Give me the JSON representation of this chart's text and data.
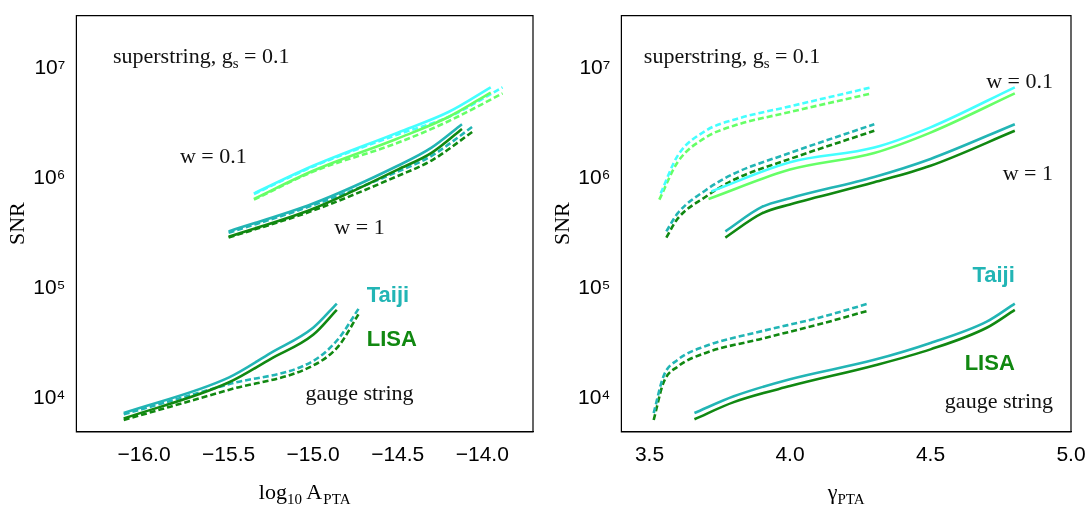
{
  "chart_data": [
    {
      "type": "line",
      "xlabel": "log$_{10}$ A$_{PTA}$",
      "ylabel": "SNR",
      "log": true,
      "grid": false,
      "legend": false,
      "xlim": [
        -16.4,
        -13.7
      ],
      "xticks": [
        {
          "value": -16,
          "label": "−16.0"
        },
        {
          "value": -15.5,
          "label": "−15.5"
        },
        {
          "value": -15,
          "label": "−15.0"
        },
        {
          "value": -14.5,
          "label": "−14.5"
        },
        {
          "value": -14,
          "label": "−14.0"
        }
      ],
      "ylim": [
        5000,
        30000000
      ],
      "yticks": [
        {
          "value": 10000,
          "label": "10⁴"
        },
        {
          "value": 100000,
          "label": "10⁵"
        },
        {
          "value": 1000000,
          "label": "10⁶"
        },
        {
          "value": 10000000,
          "label": "10⁷"
        }
      ],
      "annotations": [
        "superstring, g$_{s}$ = 0.1",
        "w = 0.1",
        "w = 1",
        "gauge string"
      ],
      "series": [
        {
          "type": "line",
          "line_style": "solid",
          "color": "#44ffff",
          "x": [
            -15.35,
            -15.0,
            -14.5,
            -14.2,
            -13.95
          ],
          "values": [
            730000,
            1300000,
            2600000,
            4000000,
            6700000
          ]
        },
        {
          "type": "line",
          "line_style": "solid",
          "color": "#66ff66",
          "x": [
            -15.35,
            -15.0,
            -14.5,
            -14.2,
            -13.95
          ],
          "values": [
            650000,
            1170000,
            2300000,
            3600000,
            6000000
          ]
        },
        {
          "type": "line",
          "line_style": "dashed",
          "color": "#44ffff",
          "x": [
            -15.35,
            -15.0,
            -14.5,
            -14.2,
            -13.88
          ],
          "values": [
            720000,
            1280000,
            2500000,
            3600000,
            6700000
          ]
        },
        {
          "type": "line",
          "line_style": "dashed",
          "color": "#66ff66",
          "x": [
            -15.35,
            -15.0,
            -14.5,
            -14.2,
            -13.88
          ],
          "values": [
            640000,
            1150000,
            2100000,
            3300000,
            5900000
          ]
        },
        {
          "type": "line",
          "line_style": "solid",
          "color": "#22b5b5",
          "x": [
            -15.5,
            -15.0,
            -14.5,
            -14.3,
            -14.12
          ],
          "values": [
            330000,
            590000,
            1300000,
            1900000,
            3100000
          ]
        },
        {
          "type": "line",
          "line_style": "solid",
          "color": "#118811",
          "x": [
            -15.5,
            -15.0,
            -14.5,
            -14.3,
            -14.12
          ],
          "values": [
            295000,
            530000,
            1200000,
            1700000,
            2800000
          ]
        },
        {
          "type": "line",
          "line_style": "dashed",
          "color": "#22b5b5",
          "x": [
            -15.5,
            -15.0,
            -14.5,
            -14.3,
            -14.05
          ],
          "values": [
            320000,
            570000,
            1150000,
            1600000,
            3000000
          ]
        },
        {
          "type": "line",
          "line_style": "dashed",
          "color": "#118811",
          "x": [
            -15.5,
            -15.0,
            -14.5,
            -14.3,
            -14.05
          ],
          "values": [
            290000,
            510000,
            1050000,
            1450000,
            2700000
          ]
        },
        {
          "type": "line",
          "line_style": "solid",
          "color": "#22b5b5",
          "x": [
            -16.12,
            -15.5,
            -15.25,
            -15.0,
            -14.86
          ],
          "values": [
            7400,
            15500,
            26000,
            44000,
            73000
          ]
        },
        {
          "type": "line",
          "line_style": "solid",
          "color": "#118811",
          "x": [
            -16.12,
            -15.5,
            -15.25,
            -15.0,
            -14.86
          ],
          "values": [
            6600,
            14000,
            23000,
            38000,
            64000
          ]
        },
        {
          "name": "Taiji",
          "type": "line",
          "line_style": "dashed",
          "color": "#22b5b5",
          "x": [
            -16.12,
            -15.5,
            -15.0,
            -14.85,
            -14.73
          ],
          "values": [
            7200,
            13500,
            22000,
            35000,
            66000
          ]
        },
        {
          "name": "LISA",
          "type": "line",
          "line_style": "dashed",
          "color": "#118811",
          "x": [
            -16.12,
            -15.5,
            -15.0,
            -14.85,
            -14.73
          ],
          "values": [
            6400,
            12000,
            20000,
            30000,
            59000
          ]
        }
      ]
    },
    {
      "type": "line",
      "xlabel": "γ$_{PTA}$",
      "ylabel": "SNR",
      "log": true,
      "grid": false,
      "legend": false,
      "xlim": [
        3.4,
        5.0
      ],
      "xticks": [
        {
          "value": 3.5,
          "label": "3.5"
        },
        {
          "value": 4,
          "label": "4.0"
        },
        {
          "value": 4.5,
          "label": "4.5"
        },
        {
          "value": 5,
          "label": "5.0"
        }
      ],
      "ylim": [
        5000,
        30000000
      ],
      "yticks": [
        {
          "value": 10000,
          "label": "10⁴"
        },
        {
          "value": 100000,
          "label": "10⁵"
        },
        {
          "value": 1000000,
          "label": "10⁶"
        },
        {
          "value": 10000000,
          "label": "10⁷"
        }
      ],
      "annotations": [
        "superstring, g$_{s}$ = 0.1",
        "w = 0.1",
        "w = 1",
        "gauge string"
      ],
      "series": [
        {
          "type": "line",
          "line_style": "solid",
          "color": "#44ffff",
          "x": [
            3.72,
            4.0,
            4.3,
            4.5,
            4.8
          ],
          "values": [
            760000,
            1400000,
            1900000,
            2900000,
            6700000
          ]
        },
        {
          "type": "line",
          "line_style": "solid",
          "color": "#66ff66",
          "x": [
            3.71,
            4.0,
            4.3,
            4.5,
            4.8
          ],
          "values": [
            650000,
            1200000,
            1700000,
            2600000,
            5900000
          ]
        },
        {
          "type": "line",
          "line_style": "dashed",
          "color": "#44ffff",
          "x": [
            3.54,
            3.6,
            3.7,
            3.8,
            4.0,
            4.29
          ],
          "values": [
            730000,
            1600000,
            2700000,
            3400000,
            4500000,
            6700000
          ]
        },
        {
          "type": "line",
          "line_style": "dashed",
          "color": "#66ff66",
          "x": [
            3.535,
            3.6,
            3.7,
            3.8,
            4.0,
            4.29
          ],
          "values": [
            640000,
            1400000,
            2350000,
            3000000,
            4000000,
            5900000
          ]
        },
        {
          "type": "line",
          "line_style": "dashed",
          "color": "#22b5b5",
          "x": [
            3.56,
            3.6,
            3.7,
            3.8,
            4.0,
            4.3
          ],
          "values": [
            330000,
            480000,
            780000,
            1100000,
            1700000,
            3100000
          ]
        },
        {
          "type": "line",
          "line_style": "dashed",
          "color": "#118811",
          "x": [
            3.56,
            3.6,
            3.7,
            3.8,
            4.0,
            4.3
          ],
          "values": [
            290000,
            430000,
            680000,
            970000,
            1500000,
            2700000
          ]
        },
        {
          "type": "line",
          "line_style": "solid",
          "color": "#22b5b5",
          "x": [
            3.77,
            3.9,
            4.0,
            4.3,
            4.5,
            4.8
          ],
          "values": [
            330000,
            550000,
            660000,
            1030000,
            1500000,
            3100000
          ]
        },
        {
          "type": "line",
          "line_style": "solid",
          "color": "#118811",
          "x": [
            3.77,
            3.9,
            4.0,
            4.3,
            4.5,
            4.8
          ],
          "values": [
            290000,
            480000,
            580000,
            920000,
            1300000,
            2700000
          ]
        },
        {
          "name": "Taiji",
          "type": "line",
          "line_style": "solid",
          "color": "#22b5b5",
          "x": [
            3.66,
            3.8,
            4.0,
            4.3,
            4.5,
            4.7,
            4.8
          ],
          "values": [
            7400,
            10500,
            15000,
            22500,
            32000,
            50000,
            73000
          ]
        },
        {
          "name": "LISA",
          "type": "line",
          "line_style": "solid",
          "color": "#118811",
          "x": [
            3.66,
            3.8,
            4.0,
            4.3,
            4.5,
            4.7,
            4.8
          ],
          "values": [
            6500,
            9300,
            13000,
            20000,
            28000,
            44000,
            64000
          ]
        },
        {
          "type": "line",
          "line_style": "dashed",
          "color": "#22b5b5",
          "x": [
            3.515,
            3.55,
            3.6,
            3.7,
            3.9,
            4.1,
            4.28
          ],
          "values": [
            7400,
            16000,
            22500,
            30000,
            41000,
            54000,
            73000
          ]
        },
        {
          "type": "line",
          "line_style": "dashed",
          "color": "#118811",
          "x": [
            3.515,
            3.55,
            3.6,
            3.7,
            3.9,
            4.1,
            4.28
          ],
          "values": [
            6400,
            14000,
            19500,
            26000,
            35000,
            47000,
            63000
          ]
        }
      ]
    }
  ]
}
